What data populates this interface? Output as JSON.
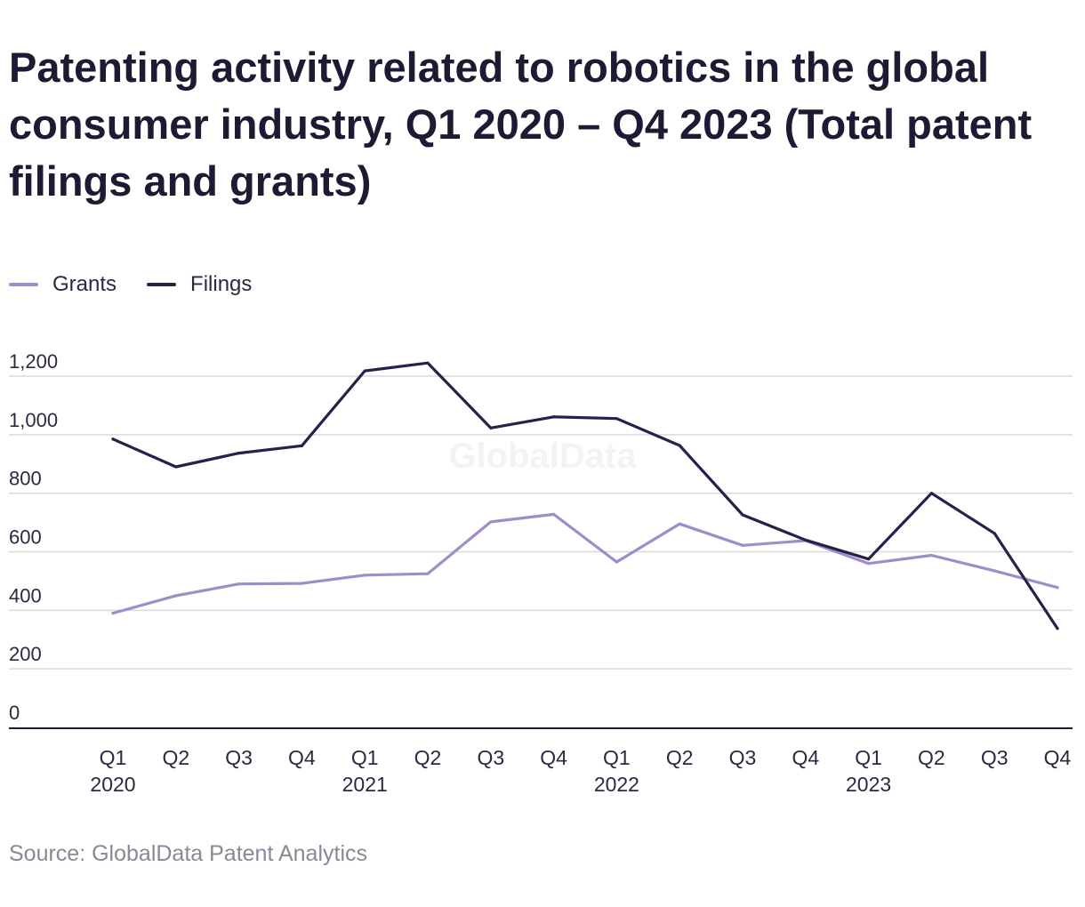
{
  "title": "Patenting activity related to robotics in the global consumer industry, Q1 2020 – Q4 2023 (Total patent filings and grants)",
  "source": "Source: GlobalData Patent Analytics",
  "watermark": "GlobalData",
  "colors": {
    "grants": "#a08cc8",
    "filings": "#2a1f4a",
    "grid": "#d9d9d9",
    "axis": "#1d1a33",
    "tick": "#2b2840"
  },
  "chart_data": {
    "type": "line",
    "title": "Patenting activity related to robotics in the global consumer industry, Q1 2020 – Q4 2023 (Total patent filings and grants)",
    "xlabel": "",
    "ylabel": "",
    "ylim": [
      0,
      1200
    ],
    "yticks": [
      0,
      200,
      400,
      600,
      800,
      1000,
      1200
    ],
    "ytick_labels": [
      "0",
      "200",
      "400",
      "600",
      "800",
      "1,000",
      "1,200"
    ],
    "grid": true,
    "legend_position": "top-left",
    "categories": [
      "Q1",
      "Q2",
      "Q3",
      "Q4",
      "Q1",
      "Q2",
      "Q3",
      "Q4",
      "Q1",
      "Q2",
      "Q3",
      "Q4",
      "Q1",
      "Q2",
      "Q3",
      "Q4"
    ],
    "category_years": [
      "2020",
      "",
      "",
      "",
      "2021",
      "",
      "",
      "",
      "2022",
      "",
      "",
      "",
      "2023",
      "",
      "",
      ""
    ],
    "series": [
      {
        "name": "Grants",
        "key": "grants",
        "values": [
          390,
          450,
          490,
          492,
          520,
          525,
          702,
          728,
          565,
          695,
          622,
          638,
          560,
          588,
          535,
          478
        ]
      },
      {
        "name": "Filings",
        "key": "filings",
        "values": [
          985,
          890,
          937,
          962,
          1218,
          1245,
          1023,
          1061,
          1055,
          963,
          726,
          640,
          575,
          800,
          663,
          338
        ]
      }
    ]
  }
}
